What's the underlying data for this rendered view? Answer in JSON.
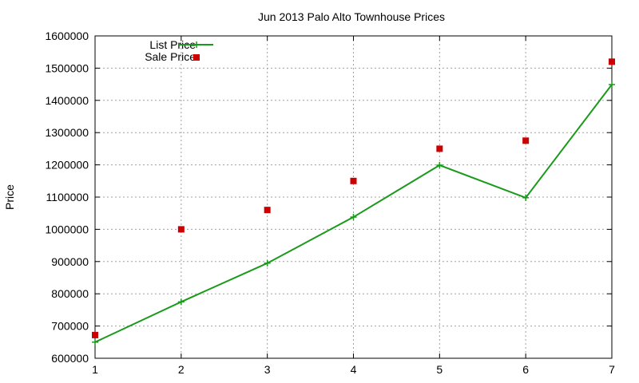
{
  "chart_data": {
    "type": "line",
    "title": "Jun 2013 Palo Alto Townhouse Prices",
    "xlabel": "",
    "ylabel": "Price",
    "xlim": [
      1,
      7
    ],
    "ylim": [
      600000,
      1600000
    ],
    "x_ticks": [
      "1",
      "2",
      "3",
      "4",
      "5",
      "6",
      "7"
    ],
    "y_ticks": [
      "600000",
      "700000",
      "800000",
      "900000",
      "1000000",
      "1100000",
      "1200000",
      "1300000",
      "1400000",
      "1500000",
      "1600000"
    ],
    "grid": true,
    "legend_position": "top-left",
    "series": [
      {
        "name": "List Price",
        "style": "line-with-plus-markers",
        "color": "#1a9a1a",
        "x": [
          1,
          2,
          3,
          4,
          5,
          6,
          7
        ],
        "values": [
          650000,
          775000,
          895000,
          1038000,
          1199000,
          1098000,
          1449000
        ]
      },
      {
        "name": "Sale Price",
        "style": "square-markers",
        "color": "#cc0000",
        "x": [
          1,
          2,
          3,
          4,
          5,
          6,
          7
        ],
        "values": [
          672000,
          1000000,
          1060000,
          1150000,
          1250000,
          1275000,
          1520000
        ]
      }
    ]
  }
}
